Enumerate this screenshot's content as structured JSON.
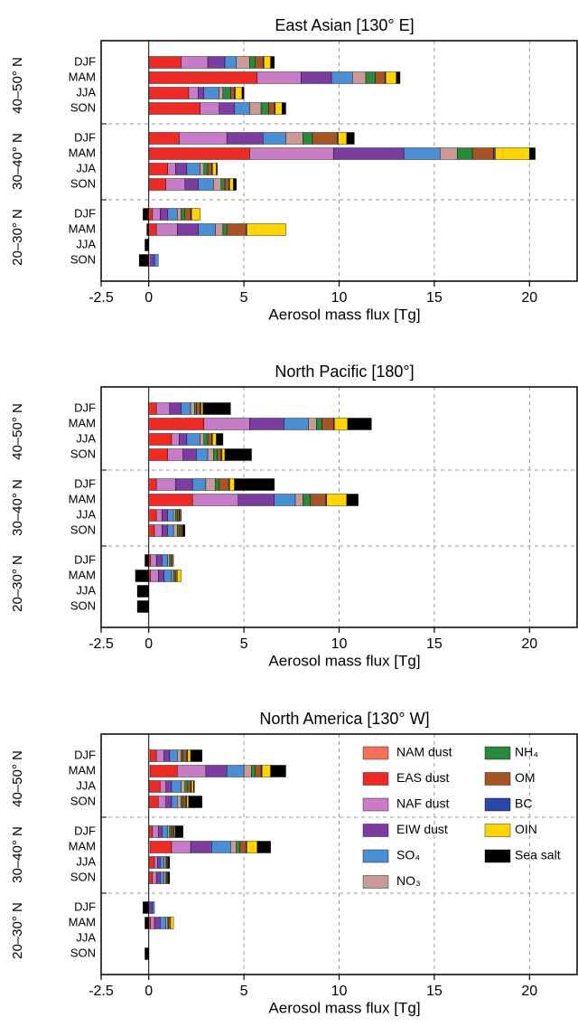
{
  "chart_data": [
    {
      "type": "bar",
      "orientation": "horizontal",
      "stacked": true,
      "title": "East Asian [130° E]",
      "xlabel": "Aerosol mass flux [Tg]",
      "categories": [
        "DJF",
        "MAM",
        "JJA",
        "SON",
        "DJF",
        "MAM",
        "JJA",
        "SON",
        "DJF",
        "MAM",
        "JJA",
        "SON"
      ],
      "group_labels": [
        "40–50° N",
        "30–40° N",
        "20–30° N"
      ],
      "xlim": [
        -2.5,
        22.5
      ],
      "xticks": [
        -2.5,
        0,
        5,
        10,
        15,
        20
      ],
      "grid": true,
      "series": [
        {
          "color": "#f4705a",
          "values": [
            0.05,
            0.05,
            0.05,
            0.05,
            0.05,
            0.05,
            0.05,
            0.05,
            0,
            0,
            0,
            0
          ]
        },
        {
          "color": "#ee2a24",
          "values": [
            1.65,
            5.65,
            2.05,
            2.65,
            1.55,
            5.25,
            0.95,
            0.85,
            0.2,
            0.4,
            0,
            0
          ]
        },
        {
          "color": "#c77dc6",
          "values": [
            1.4,
            2.3,
            0.5,
            1.0,
            2.5,
            4.4,
            0.4,
            1.0,
            0.4,
            1.1,
            0,
            0.1
          ]
        },
        {
          "color": "#7b3ea0",
          "values": [
            0.9,
            1.6,
            0.3,
            0.8,
            1.9,
            3.7,
            0.6,
            0.7,
            0.4,
            1.1,
            0,
            0.2
          ]
        },
        {
          "color": "#4a8fd4",
          "values": [
            0.6,
            1.1,
            0.8,
            0.8,
            1.2,
            1.9,
            0.7,
            0.8,
            0.5,
            0.9,
            0,
            0.2
          ]
        },
        {
          "color": "#c99a96",
          "values": [
            0.7,
            0.7,
            0.2,
            0.6,
            0.9,
            0.9,
            0.2,
            0.4,
            0.2,
            0.4,
            0,
            0
          ]
        },
        {
          "color": "#2a8a3c",
          "values": [
            0.3,
            0.5,
            0.4,
            0.4,
            0.5,
            0.8,
            0.2,
            0.2,
            0.2,
            0.2,
            0,
            0
          ]
        },
        {
          "color": "#a65423",
          "values": [
            0.4,
            0.5,
            0.2,
            0.3,
            1.3,
            1.1,
            0.2,
            0.2,
            0.3,
            1.0,
            0,
            0
          ]
        },
        {
          "color": "#2a49a6",
          "values": [
            0.05,
            0.05,
            0.05,
            0.05,
            0.05,
            0.1,
            0.05,
            0.05,
            0.05,
            0.05,
            0,
            0
          ]
        },
        {
          "color": "#ffd400",
          "values": [
            0.35,
            0.55,
            0.35,
            0.35,
            0.45,
            1.8,
            0.2,
            0.2,
            0.45,
            2.05,
            0,
            0
          ]
        },
        {
          "color": "#000000",
          "values": [
            0.2,
            0.2,
            0.1,
            0.2,
            0.4,
            0.3,
            0.05,
            0.15,
            -0.3,
            -0.1,
            -0.2,
            -0.5
          ]
        }
      ]
    },
    {
      "type": "bar",
      "orientation": "horizontal",
      "stacked": true,
      "title": "North Pacific [180°]",
      "xlabel": "Aerosol mass flux [Tg]",
      "categories": [
        "DJF",
        "MAM",
        "JJA",
        "SON",
        "DJF",
        "MAM",
        "JJA",
        "SON",
        "DJF",
        "MAM",
        "JJA",
        "SON"
      ],
      "group_labels": [
        "40–50° N",
        "30–40° N",
        "20–30° N"
      ],
      "xlim": [
        -2.5,
        22.5
      ],
      "xticks": [
        -2.5,
        0,
        5,
        10,
        15,
        20
      ],
      "grid": true,
      "series": [
        {
          "color": "#f4705a",
          "values": [
            0,
            0,
            0,
            0,
            0,
            0,
            0,
            0,
            0,
            0,
            0,
            0
          ]
        },
        {
          "color": "#ee2a24",
          "values": [
            0.4,
            2.9,
            1.2,
            1.0,
            0.4,
            2.3,
            0.4,
            0.3,
            0.1,
            0.1,
            0,
            0
          ]
        },
        {
          "color": "#c77dc6",
          "values": [
            0.7,
            2.4,
            0.4,
            0.8,
            1.0,
            2.4,
            0.3,
            0.4,
            0.3,
            0.4,
            0,
            0
          ]
        },
        {
          "color": "#7b3ea0",
          "values": [
            0.6,
            1.8,
            0.4,
            0.7,
            0.9,
            1.9,
            0.3,
            0.3,
            0.3,
            0.3,
            0,
            0
          ]
        },
        {
          "color": "#4a8fd4",
          "values": [
            0.5,
            1.3,
            0.7,
            0.6,
            0.7,
            1.1,
            0.3,
            0.3,
            0.3,
            0.4,
            0,
            0
          ]
        },
        {
          "color": "#c99a96",
          "values": [
            0.2,
            0.4,
            0.2,
            0.3,
            0.5,
            0.4,
            0.1,
            0.2,
            0.1,
            0.1,
            0,
            0
          ]
        },
        {
          "color": "#2a8a3c",
          "values": [
            0.1,
            0.3,
            0.2,
            0.2,
            0.2,
            0.4,
            0.1,
            0.1,
            0.1,
            0.1,
            0,
            0
          ]
        },
        {
          "color": "#a65423",
          "values": [
            0.2,
            0.6,
            0.2,
            0.2,
            0.5,
            0.8,
            0.1,
            0.1,
            0.1,
            0.1,
            0,
            0
          ]
        },
        {
          "color": "#2a49a6",
          "values": [
            0.05,
            0.05,
            0.05,
            0.05,
            0.05,
            0.05,
            0.02,
            0.02,
            0,
            0,
            0,
            0
          ]
        },
        {
          "color": "#ffd400",
          "values": [
            0.1,
            0.7,
            0.2,
            0.15,
            0.25,
            1.05,
            0.05,
            0.05,
            0,
            0.2,
            0,
            0
          ]
        },
        {
          "color": "#000000",
          "values": [
            1.45,
            1.25,
            0.35,
            1.4,
            2.1,
            0.6,
            0.03,
            0.13,
            -0.2,
            -0.7,
            -0.6,
            -0.6
          ]
        }
      ]
    },
    {
      "type": "bar",
      "orientation": "horizontal",
      "stacked": true,
      "title": "North America [130° W]",
      "xlabel": "Aerosol mass flux [Tg]",
      "categories": [
        "DJF",
        "MAM",
        "JJA",
        "SON",
        "DJF",
        "MAM",
        "JJA",
        "SON",
        "DJF",
        "MAM",
        "JJA",
        "SON"
      ],
      "group_labels": [
        "40–50° N",
        "30–40° N",
        "20–30° N"
      ],
      "xlim": [
        -2.5,
        22.5
      ],
      "xticks": [
        -2.5,
        0,
        5,
        10,
        15,
        20
      ],
      "grid": true,
      "legend": "upper right",
      "series": [
        {
          "name": "NAM dust",
          "color": "#f4705a",
          "values": [
            0.1,
            0.1,
            0.05,
            0.05,
            0.05,
            0.1,
            0.05,
            0.05,
            0,
            0,
            0,
            0
          ]
        },
        {
          "name": "EAS dust",
          "color": "#ee2a24",
          "values": [
            0.3,
            1.4,
            0.55,
            0.45,
            0.15,
            1.1,
            0.25,
            0.15,
            0,
            0.1,
            0,
            0
          ]
        },
        {
          "name": "NAF dust",
          "color": "#c77dc6",
          "values": [
            0.4,
            1.5,
            0.3,
            0.4,
            0.3,
            1.0,
            0.15,
            0.2,
            0,
            0.2,
            0,
            0
          ]
        },
        {
          "name": "EIW dust",
          "color": "#7b3ea0",
          "values": [
            0.3,
            1.1,
            0.3,
            0.3,
            0.2,
            1.1,
            0.15,
            0.2,
            0.2,
            0.3,
            0,
            0
          ]
        },
        {
          "name": "SO₄",
          "color": "#4a8fd4",
          "values": [
            0.4,
            0.9,
            0.5,
            0.3,
            0.3,
            1.0,
            0.2,
            0.2,
            0.1,
            0.3,
            0,
            0
          ]
        },
        {
          "name": "NO₃",
          "color": "#c99a96",
          "values": [
            0.2,
            0.4,
            0.2,
            0.2,
            0.1,
            0.3,
            0.1,
            0.1,
            0,
            0.1,
            0,
            0
          ]
        },
        {
          "name": "NH₄",
          "color": "#2a8a3c",
          "values": [
            0.1,
            0.2,
            0.15,
            0.1,
            0.1,
            0.2,
            0.05,
            0.05,
            0,
            0.05,
            0,
            0
          ]
        },
        {
          "name": "OM",
          "color": "#a65423",
          "values": [
            0.2,
            0.3,
            0.15,
            0.15,
            0.1,
            0.3,
            0.05,
            0.05,
            0,
            0.1,
            0,
            0
          ]
        },
        {
          "name": "BC",
          "color": "#2a49a6",
          "values": [
            0.05,
            0.05,
            0.05,
            0.05,
            0.05,
            0.05,
            0.02,
            0.02,
            0,
            0,
            0,
            0
          ]
        },
        {
          "name": "OIN",
          "color": "#ffd400",
          "values": [
            0.15,
            0.45,
            0.1,
            0.1,
            0.05,
            0.55,
            0.03,
            0.03,
            0,
            0.15,
            0,
            0
          ]
        },
        {
          "name": "Sea salt",
          "color": "#000000",
          "values": [
            0.6,
            0.8,
            0.05,
            0.7,
            0.4,
            0.7,
            0.05,
            0.05,
            -0.3,
            -0.2,
            0,
            -0.2
          ]
        }
      ]
    }
  ]
}
